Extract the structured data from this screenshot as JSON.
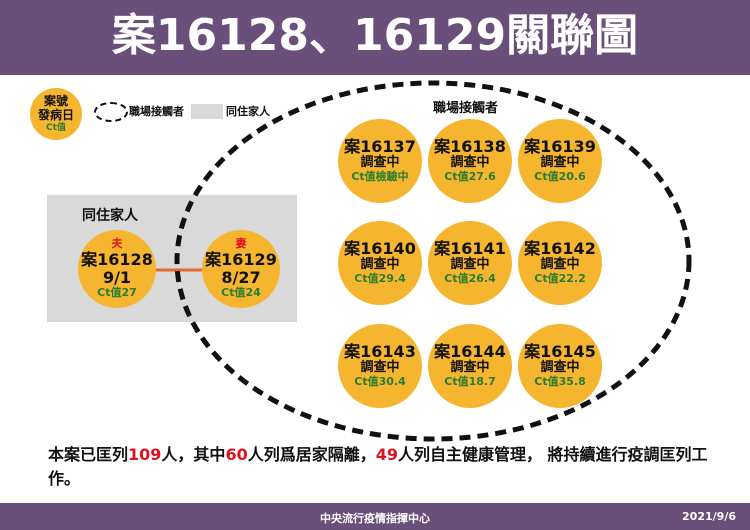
{
  "title": "案16128、16129關聯圖",
  "legend": {
    "circle_lines": [
      "案號",
      "發病日",
      "Ct值"
    ],
    "workplace_label": "職場接觸者",
    "household_label": "同住家人"
  },
  "household": {
    "label": "同住家人",
    "cases": [
      {
        "role": "夫",
        "case": "案16128",
        "onset": "9/1",
        "ct": "Ct值27"
      },
      {
        "role": "妻",
        "case": "案16129",
        "onset": "8/27",
        "ct": "Ct值24"
      }
    ]
  },
  "workplace": {
    "label": "職場接觸者",
    "cases": [
      {
        "case": "案16137",
        "status": "調查中",
        "ct": "Ct值檢驗中"
      },
      {
        "case": "案16138",
        "status": "調查中",
        "ct": "Ct值27.6"
      },
      {
        "case": "案16139",
        "status": "調查中",
        "ct": "Ct值20.6"
      },
      {
        "case": "案16140",
        "status": "調查中",
        "ct": "Ct值29.4"
      },
      {
        "case": "案16141",
        "status": "調查中",
        "ct": "Ct值26.4"
      },
      {
        "case": "案16142",
        "status": "調查中",
        "ct": "Ct值22.2"
      },
      {
        "case": "案16143",
        "status": "調查中",
        "ct": "Ct值30.4"
      },
      {
        "case": "案16144",
        "status": "調查中",
        "ct": "Ct值18.7"
      },
      {
        "case": "案16145",
        "status": "調查中",
        "ct": "Ct值35.8"
      }
    ]
  },
  "note": {
    "p1": "本案已匡列",
    "n1": "109",
    "p2": "人，其中",
    "n2": "60",
    "p3": "人列爲居家隔離，",
    "n3": "49",
    "p4": "人列自主健康管理， 將持續進行疫調匡列工作。"
  },
  "footer": {
    "org": "中央流行疫情指揮中心",
    "date": "2021/9/6"
  },
  "colors": {
    "header": "#6a4f7a",
    "circle": "#f6b52e",
    "ct": "#2a7d2e",
    "highlight": "#e0101e",
    "household_box": "#d9d9d9"
  }
}
